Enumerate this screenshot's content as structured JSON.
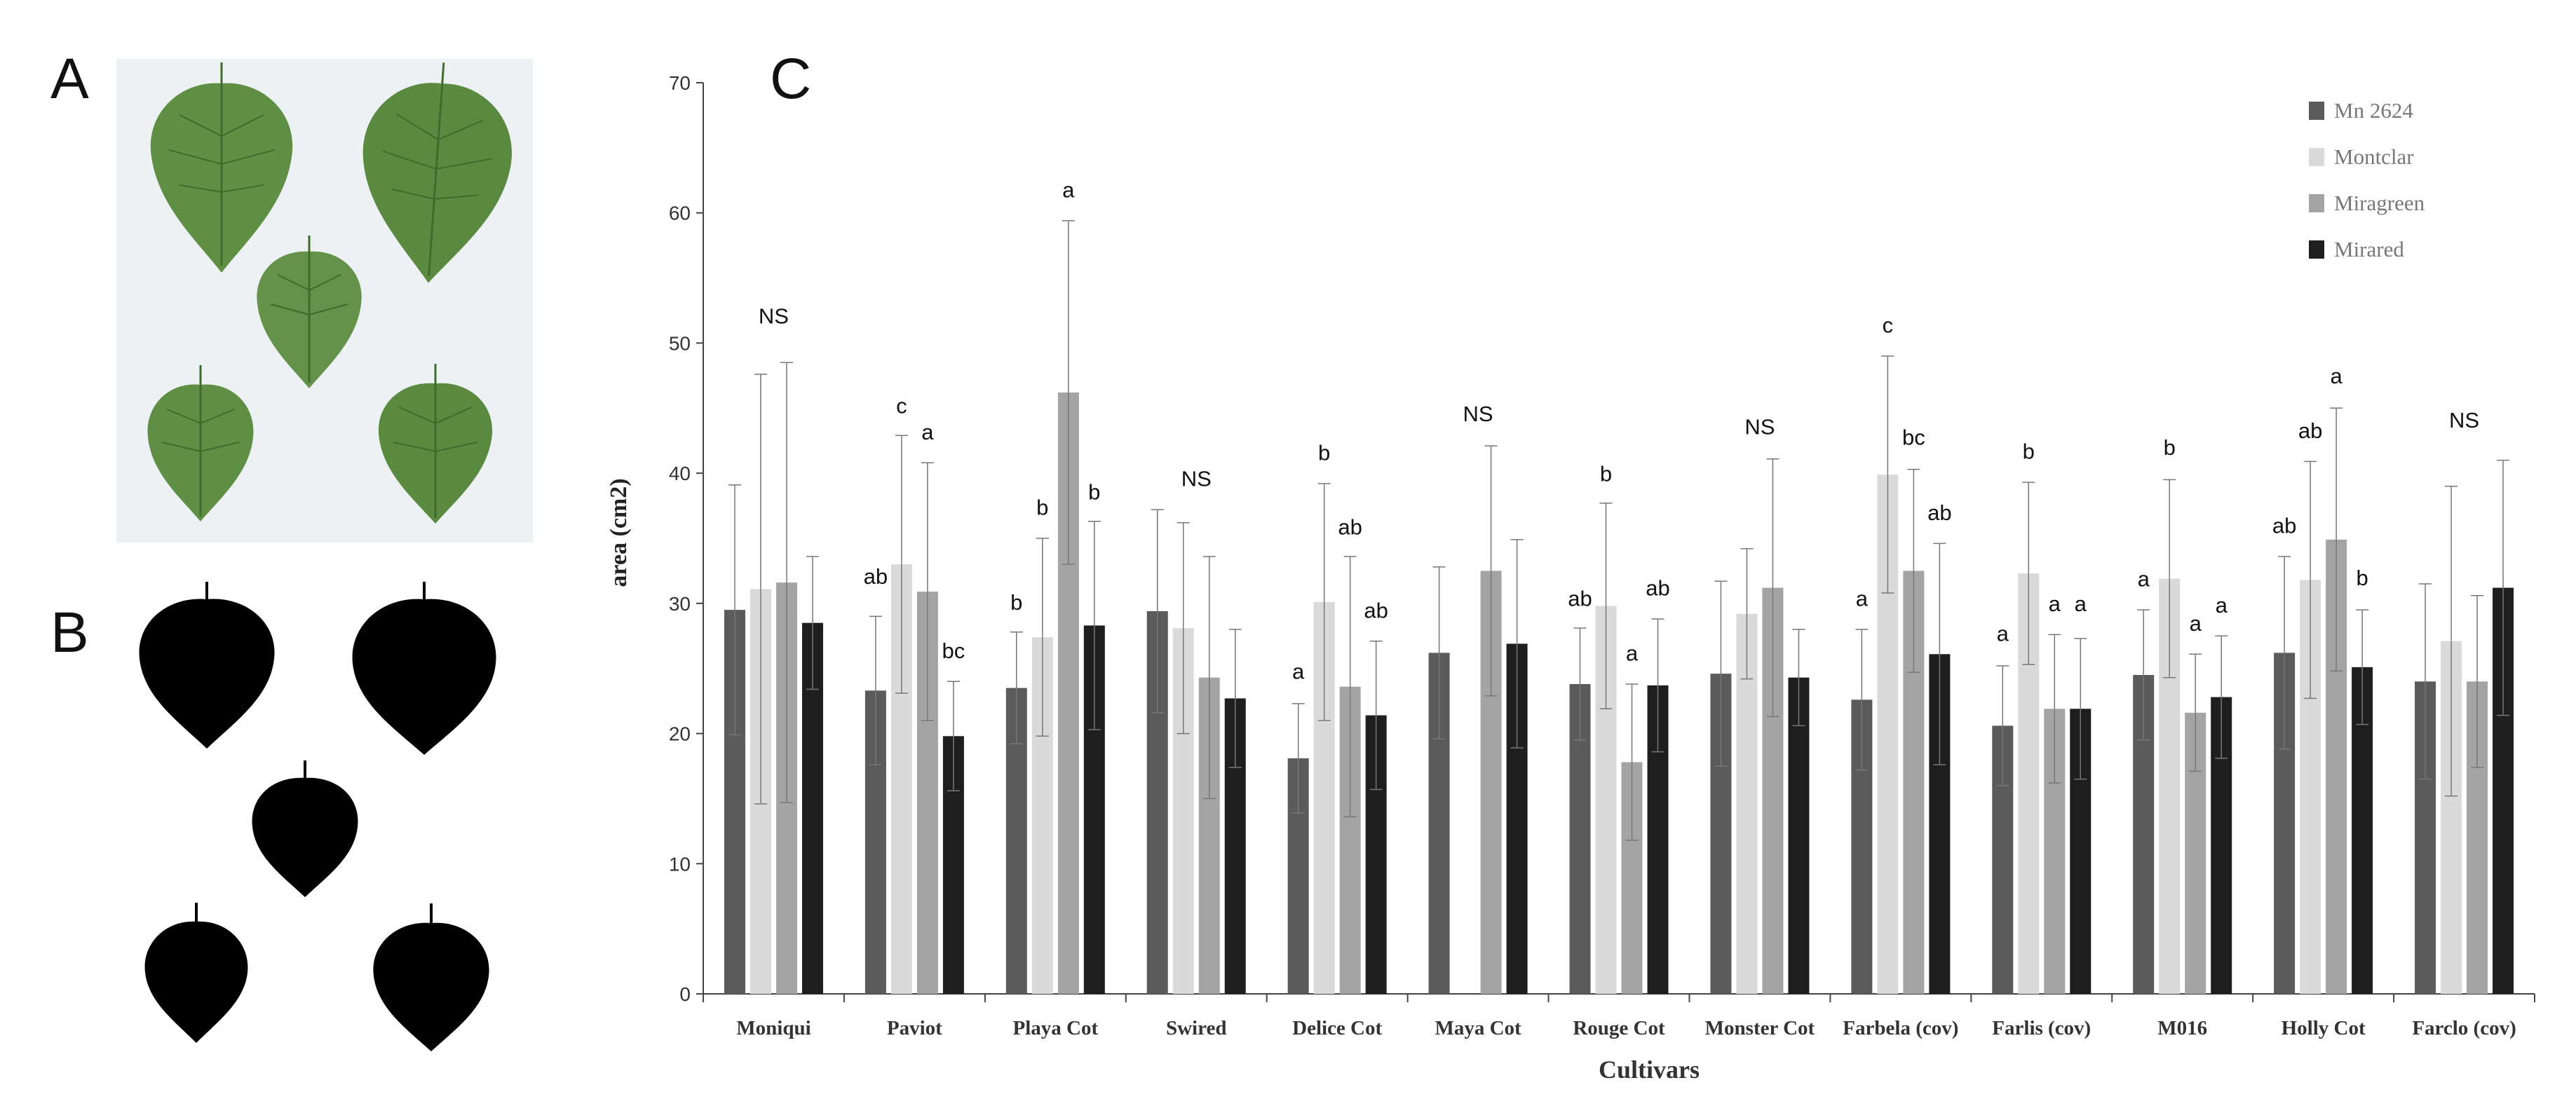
{
  "panels": {
    "a": "A",
    "b": "B",
    "c": "C"
  },
  "colors": {
    "mn2624": "#5b5b5b",
    "montclar": "#dadada",
    "miragreen": "#a4a4a4",
    "mirared": "#1e1e1e",
    "leaf": "#5f8f44",
    "leaf_dark": "#3f6c2c",
    "photo_bg": "#eef1f4"
  },
  "chart_data": {
    "type": "bar",
    "title": "",
    "xlabel": "Cultivars",
    "ylabel": "area (cm2)",
    "ylim": [
      0,
      70
    ],
    "yticks": [
      0,
      10,
      20,
      30,
      40,
      50,
      60,
      70
    ],
    "grid": false,
    "legend_position": "top-right",
    "categories": [
      "Moniqui",
      "Paviot",
      "Playa  Cot",
      "Swired",
      "Delice Cot",
      "Maya  Cot",
      "Rouge  Cot",
      "Monster  Cot",
      "Farbela (cov)",
      "Farlis (cov)",
      "M016",
      "Holly  Cot",
      "Farclo (cov)"
    ],
    "series": [
      {
        "name": "Mn 2624",
        "color": "#5b5b5b",
        "values": [
          29.5,
          23.3,
          23.5,
          29.4,
          18.1,
          26.2,
          23.8,
          24.6,
          22.6,
          20.6,
          24.5,
          26.2,
          24.0
        ],
        "errors": [
          9.6,
          5.7,
          4.3,
          7.8,
          4.2,
          6.6,
          4.3,
          7.1,
          5.4,
          4.6,
          5.0,
          7.4,
          7.5
        ]
      },
      {
        "name": "Montclar",
        "color": "#dadada",
        "values": [
          31.1,
          33.0,
          27.4,
          28.1,
          30.1,
          null,
          29.8,
          29.2,
          39.9,
          32.3,
          31.9,
          31.8,
          27.1
        ],
        "errors": [
          16.5,
          9.9,
          7.6,
          8.1,
          9.1,
          null,
          7.9,
          5.0,
          9.1,
          7.0,
          7.6,
          9.1,
          11.9
        ]
      },
      {
        "name": "Miragreen",
        "color": "#a4a4a4",
        "values": [
          31.6,
          30.9,
          46.2,
          24.3,
          23.6,
          32.5,
          17.8,
          31.2,
          32.5,
          21.9,
          21.6,
          34.9,
          24.0
        ],
        "errors": [
          16.9,
          9.9,
          13.2,
          9.3,
          10.0,
          9.6,
          6.0,
          9.9,
          7.8,
          5.7,
          4.5,
          10.1,
          6.6
        ]
      },
      {
        "name": "Mirared",
        "color": "#1e1e1e",
        "values": [
          28.5,
          19.8,
          28.3,
          22.7,
          21.4,
          26.9,
          23.7,
          24.3,
          26.1,
          21.9,
          22.8,
          25.1,
          31.2
        ],
        "errors": [
          5.1,
          4.2,
          8.0,
          5.3,
          5.7,
          8.0,
          5.1,
          3.7,
          8.5,
          5.4,
          4.7,
          4.4,
          9.8
        ]
      }
    ],
    "annotations": [
      {
        "category": 0,
        "series": null,
        "text": "NS",
        "value": 51.5
      },
      {
        "category": 1,
        "series": 0,
        "text": "ab",
        "value": 31.5
      },
      {
        "category": 1,
        "series": 1,
        "text": "c",
        "value": 44.6
      },
      {
        "category": 1,
        "series": 2,
        "text": "a",
        "value": 42.6
      },
      {
        "category": 1,
        "series": 3,
        "text": "bc",
        "value": 25.8
      },
      {
        "category": 2,
        "series": 0,
        "text": "b",
        "value": 29.5
      },
      {
        "category": 2,
        "series": 1,
        "text": "b",
        "value": 36.8
      },
      {
        "category": 2,
        "series": 2,
        "text": "a",
        "value": 61.2
      },
      {
        "category": 2,
        "series": 3,
        "text": "b",
        "value": 38.0
      },
      {
        "category": 3,
        "series": null,
        "text": "NS",
        "value": 39.0
      },
      {
        "category": 4,
        "series": 0,
        "text": "a",
        "value": 24.2
      },
      {
        "category": 4,
        "series": 1,
        "text": "b",
        "value": 41.0
      },
      {
        "category": 4,
        "series": 2,
        "text": "ab",
        "value": 35.3
      },
      {
        "category": 4,
        "series": 3,
        "text": "ab",
        "value": 28.9
      },
      {
        "category": 5,
        "series": null,
        "text": "NS",
        "value": 44.0
      },
      {
        "category": 6,
        "series": 0,
        "text": "ab",
        "value": 29.8
      },
      {
        "category": 6,
        "series": 1,
        "text": "b",
        "value": 39.4
      },
      {
        "category": 6,
        "series": 2,
        "text": "a",
        "value": 25.6
      },
      {
        "category": 6,
        "series": 3,
        "text": "ab",
        "value": 30.6
      },
      {
        "category": 7,
        "series": null,
        "text": "NS",
        "value": 43.0
      },
      {
        "category": 8,
        "series": 0,
        "text": "a",
        "value": 29.8
      },
      {
        "category": 8,
        "series": 1,
        "text": "c",
        "value": 50.8
      },
      {
        "category": 8,
        "series": 2,
        "text": "bc",
        "value": 42.2
      },
      {
        "category": 8,
        "series": 3,
        "text": "ab",
        "value": 36.4
      },
      {
        "category": 9,
        "series": 0,
        "text": "a",
        "value": 27.1
      },
      {
        "category": 9,
        "series": 1,
        "text": "b",
        "value": 41.1
      },
      {
        "category": 9,
        "series": 2,
        "text": "a",
        "value": 29.4
      },
      {
        "category": 9,
        "series": 3,
        "text": "a",
        "value": 29.4
      },
      {
        "category": 10,
        "series": 0,
        "text": "a",
        "value": 31.3
      },
      {
        "category": 10,
        "series": 1,
        "text": "b",
        "value": 41.4
      },
      {
        "category": 10,
        "series": 2,
        "text": "a",
        "value": 27.9
      },
      {
        "category": 10,
        "series": 3,
        "text": "a",
        "value": 29.3
      },
      {
        "category": 11,
        "series": 0,
        "text": "ab",
        "value": 35.4
      },
      {
        "category": 11,
        "series": 1,
        "text": "ab",
        "value": 42.7
      },
      {
        "category": 11,
        "series": 2,
        "text": "a",
        "value": 46.9
      },
      {
        "category": 11,
        "series": 3,
        "text": "b",
        "value": 31.4
      },
      {
        "category": 12,
        "series": null,
        "text": "NS",
        "value": 43.5
      }
    ]
  }
}
